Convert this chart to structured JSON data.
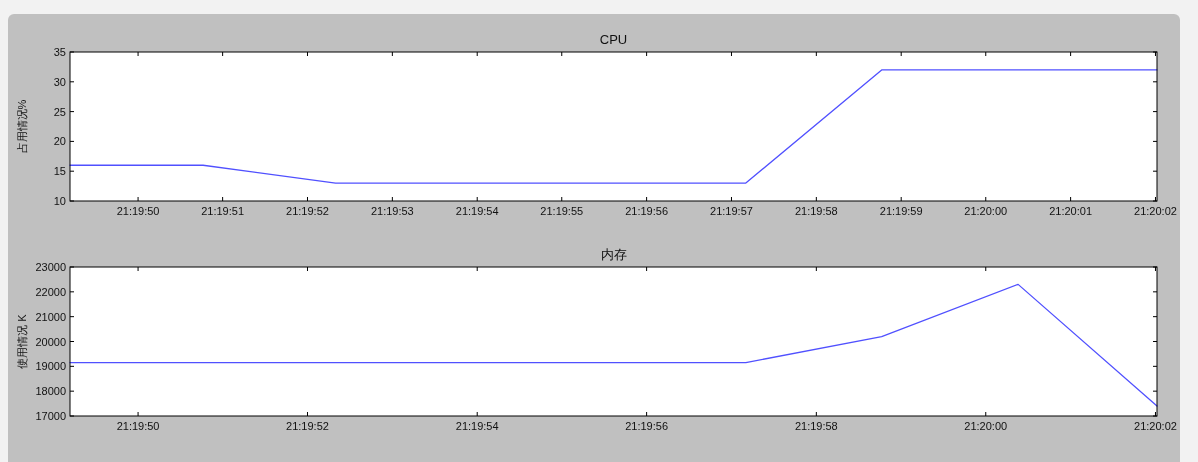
{
  "chart_data": [
    {
      "type": "line",
      "title": "CPU",
      "ylabel": "占用情况%",
      "x": [
        21.330333,
        21.330769,
        21.331203,
        21.331639,
        21.332075,
        21.332547,
        21.332992,
        21.333439,
        21.333894
      ],
      "series": [
        {
          "color": "#5050ff",
          "values": [
            16,
            16,
            13,
            13,
            13,
            13,
            32,
            32,
            32
          ]
        }
      ],
      "xlim": [
        21.330333,
        21.333894
      ],
      "ylim": [
        10,
        35
      ],
      "yticks": [
        10,
        15,
        20,
        25,
        30,
        35
      ],
      "xticks": [
        {
          "value": 21.330556,
          "label": "21:19:50"
        },
        {
          "value": 21.330833,
          "label": "21:19:51"
        },
        {
          "value": 21.331111,
          "label": "21:19:52"
        },
        {
          "value": 21.331389,
          "label": "21:19:53"
        },
        {
          "value": 21.331667,
          "label": "21:19:54"
        },
        {
          "value": 21.331944,
          "label": "21:19:55"
        },
        {
          "value": 21.332222,
          "label": "21:19:56"
        },
        {
          "value": 21.3325,
          "label": "21:19:57"
        },
        {
          "value": 21.332778,
          "label": "21:19:58"
        },
        {
          "value": 21.333056,
          "label": "21:19:59"
        },
        {
          "value": 21.333333,
          "label": "21:20:00"
        },
        {
          "value": 21.333611,
          "label": "21:20:01"
        },
        {
          "value": 21.333889,
          "label": "21:20:02"
        }
      ]
    },
    {
      "type": "line",
      "title": "内存",
      "ylabel": "使用情况 K",
      "x": [
        21.330333,
        21.330769,
        21.331203,
        21.331639,
        21.332075,
        21.332547,
        21.332992,
        21.333439,
        21.333894
      ],
      "series": [
        {
          "color": "#5050ff",
          "values": [
            19150,
            19150,
            19150,
            19150,
            19150,
            19150,
            20200,
            22300,
            17400
          ]
        }
      ],
      "xlim": [
        21.330333,
        21.333894
      ],
      "ylim": [
        17000,
        23000
      ],
      "yticks": [
        17000,
        18000,
        19000,
        20000,
        21000,
        22000,
        23000
      ],
      "xticks": [
        {
          "value": 21.330556,
          "label": "21:19:50"
        },
        {
          "value": 21.331111,
          "label": "21:19:52"
        },
        {
          "value": 21.331667,
          "label": "21:19:54"
        },
        {
          "value": 21.332222,
          "label": "21:19:56"
        },
        {
          "value": 21.332778,
          "label": "21:19:58"
        },
        {
          "value": 21.333333,
          "label": "21:20:00"
        },
        {
          "value": 21.333889,
          "label": "21:20:02"
        }
      ]
    }
  ]
}
